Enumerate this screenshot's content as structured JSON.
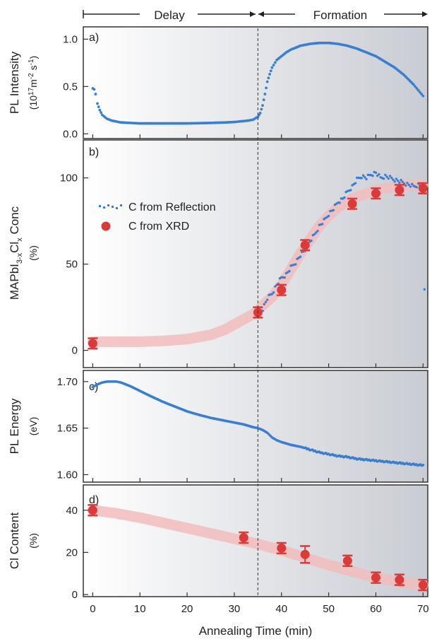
{
  "header": {
    "delay_label": "Delay",
    "formation_label": "Formation"
  },
  "xlabel": "Annealing Time (min)",
  "xlim": [
    -2,
    71
  ],
  "xticks": [
    0,
    10,
    20,
    30,
    40,
    50,
    60,
    70
  ],
  "divider_x": 35,
  "colors": {
    "blue": "#3a7fcf",
    "red": "#d93a3a",
    "band": "#f2bcbc",
    "frame": "#333333"
  },
  "chart_data": [
    {
      "type": "scatter",
      "panel_label": "a)",
      "ylabel": "PL Intensity",
      "yunit_base": "(10",
      "yunit_sup1": "17",
      "yunit_mid": "m",
      "yunit_sup2": "-2",
      "yunit_s": " s",
      "yunit_sup3": "-1",
      "yunit_end": ")",
      "ylim": [
        -0.05,
        1.13
      ],
      "yticks": [
        0.0,
        0.5,
        1.0
      ],
      "ytick_labels": [
        "0.0",
        "0.5",
        "1.0"
      ],
      "series": [
        {
          "x": [
            0,
            0.3,
            0.6,
            1,
            1.5,
            2,
            3,
            4,
            5,
            6,
            8,
            10,
            15,
            20,
            25,
            28,
            30,
            31,
            32,
            33,
            34,
            35,
            35.5,
            36,
            36.5,
            37,
            37.5,
            38,
            39,
            40,
            41,
            42,
            44,
            46,
            48,
            50,
            52,
            54,
            56,
            58,
            60,
            62,
            64,
            66,
            68,
            69,
            70
          ],
          "y": [
            0.48,
            0.47,
            0.42,
            0.32,
            0.25,
            0.2,
            0.16,
            0.14,
            0.13,
            0.12,
            0.115,
            0.11,
            0.11,
            0.11,
            0.115,
            0.12,
            0.125,
            0.13,
            0.135,
            0.14,
            0.15,
            0.18,
            0.22,
            0.3,
            0.42,
            0.55,
            0.63,
            0.7,
            0.78,
            0.82,
            0.86,
            0.89,
            0.93,
            0.95,
            0.96,
            0.96,
            0.95,
            0.93,
            0.9,
            0.86,
            0.82,
            0.76,
            0.7,
            0.62,
            0.52,
            0.46,
            0.4
          ]
        }
      ]
    },
    {
      "type": "scatter",
      "panel_label": "b)",
      "ylabel_main": "MAPbI",
      "ylabel_sub1": "3-x",
      "ylabel_mid": "Cl",
      "ylabel_sub2": "x",
      "ylabel_end": " Conc",
      "yunit": "(%)",
      "ylim": [
        -10,
        122
      ],
      "yticks": [
        0,
        50,
        100
      ],
      "ytick_labels": [
        "0",
        "50",
        "100"
      ],
      "legend": {
        "reflection": "C from Reflection",
        "xrd": "C from XRD"
      },
      "band": {
        "x": [
          0,
          5,
          10,
          15,
          20,
          25,
          28,
          30,
          32,
          34,
          35,
          36,
          38,
          40,
          42,
          44,
          46,
          48,
          50,
          52,
          55,
          58,
          60,
          63,
          66,
          70
        ],
        "y": [
          5,
          5,
          5,
          5.5,
          6.5,
          9,
          12,
          15,
          18,
          21,
          23,
          26,
          31,
          38,
          47,
          56,
          64,
          72,
          78,
          83,
          88,
          91,
          93,
          94.5,
          95.5,
          96
        ]
      },
      "reflection": {
        "x": [
          35,
          36,
          37,
          38,
          39,
          40,
          41,
          42,
          43,
          44,
          45,
          46,
          47,
          48,
          49,
          50,
          51,
          52,
          53,
          54,
          55,
          56,
          57,
          58,
          59,
          60,
          61,
          62,
          63,
          64,
          65,
          66,
          67,
          68,
          69,
          70,
          70.3
        ],
        "y": [
          20,
          24,
          30,
          33,
          38,
          42,
          44,
          48,
          51,
          55,
          58,
          63,
          67,
          72,
          75,
          79,
          82,
          86,
          88,
          92,
          95,
          99,
          101,
          100,
          102,
          103,
          100,
          101,
          100,
          99,
          98,
          97,
          96,
          95,
          96,
          95,
          35
        ]
      },
      "xrd": {
        "x": [
          0,
          35,
          40,
          45,
          55,
          60,
          65,
          70
        ],
        "y": [
          4,
          22,
          35,
          61,
          85,
          91,
          93,
          94
        ],
        "err": [
          3,
          3,
          3,
          3,
          3,
          3,
          3,
          3
        ]
      }
    },
    {
      "type": "scatter",
      "panel_label": "c)",
      "ylabel": "PL Energy",
      "yunit": "(eV)",
      "ylim": [
        1.592,
        1.712
      ],
      "yticks": [
        1.6,
        1.65,
        1.7
      ],
      "ytick_labels": [
        "1.60",
        "1.65",
        "1.70"
      ],
      "series": [
        {
          "x": [
            0,
            1,
            2,
            3,
            4,
            5,
            6,
            8,
            10,
            12,
            15,
            18,
            20,
            22,
            25,
            28,
            30,
            32,
            34,
            35,
            36,
            37,
            38,
            39,
            40,
            42,
            44,
            46,
            48,
            50,
            52,
            54,
            56,
            58,
            60,
            62,
            64,
            66,
            68,
            70
          ],
          "y": [
            1.694,
            1.697,
            1.699,
            1.7,
            1.7,
            1.7,
            1.699,
            1.695,
            1.69,
            1.685,
            1.678,
            1.672,
            1.668,
            1.665,
            1.661,
            1.658,
            1.656,
            1.654,
            1.651,
            1.65,
            1.648,
            1.645,
            1.64,
            1.637,
            1.635,
            1.632,
            1.63,
            1.627,
            1.624,
            1.622,
            1.62,
            1.619,
            1.617,
            1.616,
            1.615,
            1.614,
            1.613,
            1.612,
            1.611,
            1.61
          ]
        }
      ]
    },
    {
      "type": "scatter",
      "panel_label": "d)",
      "ylabel": "Cl Content",
      "yunit": "(%)",
      "ylim": [
        -1,
        52
      ],
      "yticks": [
        0,
        20,
        40
      ],
      "ytick_labels": [
        "0",
        "20",
        "40"
      ],
      "band": {
        "x": [
          0,
          5,
          10,
          15,
          20,
          25,
          30,
          35,
          40,
          45,
          50,
          55,
          60,
          65,
          70
        ],
        "y": [
          40,
          38.5,
          36.5,
          34,
          31.5,
          29,
          26.5,
          24,
          21,
          17.5,
          14,
          11,
          8,
          6,
          4.5
        ]
      },
      "xrd": {
        "x": [
          0,
          32,
          40,
          45,
          54,
          60,
          65,
          70
        ],
        "y": [
          40,
          27,
          22,
          19,
          16,
          8,
          7,
          4.5
        ],
        "err": [
          2.5,
          2.5,
          2.5,
          4,
          2.5,
          2.5,
          2.5,
          2.5
        ]
      }
    }
  ]
}
